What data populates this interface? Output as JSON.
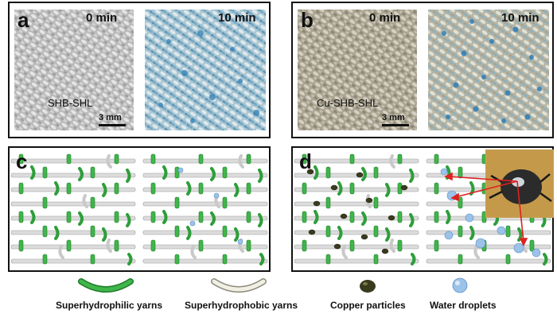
{
  "panels": {
    "a": {
      "label": "a",
      "time_left": "0 min",
      "time_right": "10 min",
      "sample": "SHB-SHL",
      "scale": "3 mm"
    },
    "b": {
      "label": "b",
      "time_left": "0 min",
      "time_right": "10 min",
      "sample": "Cu-SHB-SHL",
      "scale": "3 mm"
    },
    "c": {
      "label": "c"
    },
    "d": {
      "label": "d"
    }
  },
  "legend": [
    {
      "label": "Superhydrophilic yarns",
      "icon": "green-yarn-icon"
    },
    {
      "label": "Superhydrophobic yarns",
      "icon": "white-yarn-icon"
    },
    {
      "label": "Copper particles",
      "icon": "copper-particle-icon"
    },
    {
      "label": "Water droplets",
      "icon": "water-droplet-icon"
    }
  ],
  "colors": {
    "green": "#3fb64a",
    "green_dark": "#1f7a28",
    "white_yarn": "#d7d7d7",
    "copper": "#3a3a1e",
    "droplet": "#9cc2e8",
    "fabric_gray": "#bdbdbd",
    "fabric_blue": "#8fb9c9"
  }
}
